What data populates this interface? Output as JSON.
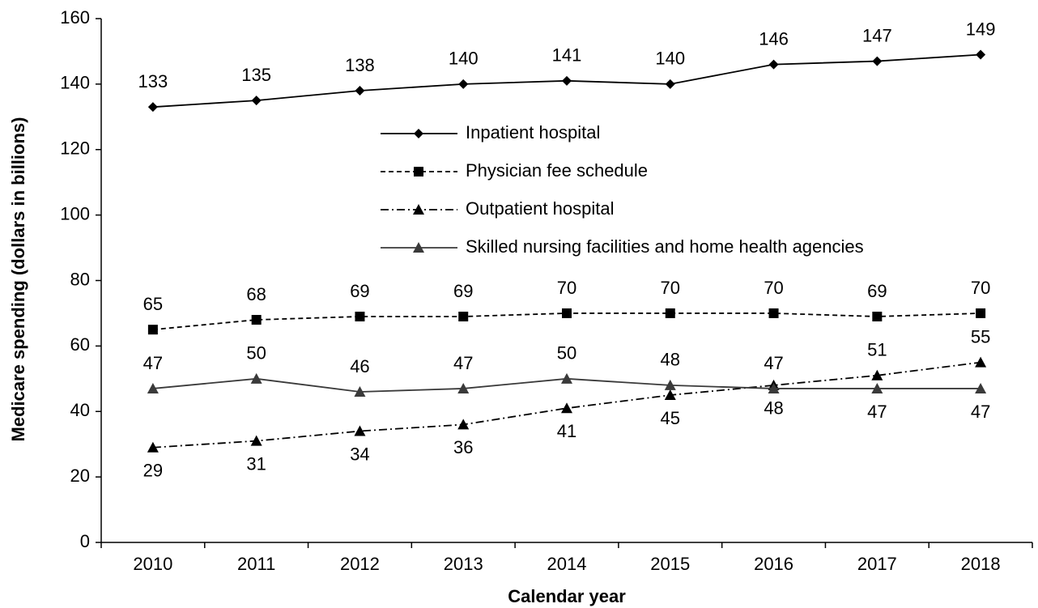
{
  "chart_data": {
    "type": "line",
    "xlabel": "Calendar year",
    "ylabel": "Medicare spending (dollars in billions)",
    "categories": [
      "2010",
      "2011",
      "2012",
      "2013",
      "2014",
      "2015",
      "2016",
      "2017",
      "2018"
    ],
    "series": [
      {
        "name": "Inpatient hospital",
        "color": "#000000",
        "marker": "diamond",
        "dash": "solid",
        "values": [
          133,
          135,
          138,
          140,
          141,
          140,
          146,
          147,
          149
        ]
      },
      {
        "name": "Physician fee schedule",
        "color": "#000000",
        "marker": "square",
        "dash": "dashed",
        "values": [
          65,
          68,
          69,
          69,
          70,
          70,
          70,
          69,
          70
        ]
      },
      {
        "name": "Outpatient hospital",
        "color": "#000000",
        "marker": "triangle",
        "dash": "dashdot",
        "values": [
          29,
          31,
          34,
          36,
          41,
          45,
          48,
          51,
          55
        ]
      },
      {
        "name": "Skilled nursing facilities and home health agencies",
        "color": "#3a3a3a",
        "marker": "triangle",
        "dash": "solid",
        "values": [
          47,
          50,
          46,
          47,
          50,
          48,
          47,
          47,
          47
        ]
      }
    ],
    "ylim": [
      0,
      160
    ],
    "yticks": [
      0,
      20,
      40,
      60,
      80,
      100,
      120,
      140,
      160
    ],
    "grid": false
  }
}
